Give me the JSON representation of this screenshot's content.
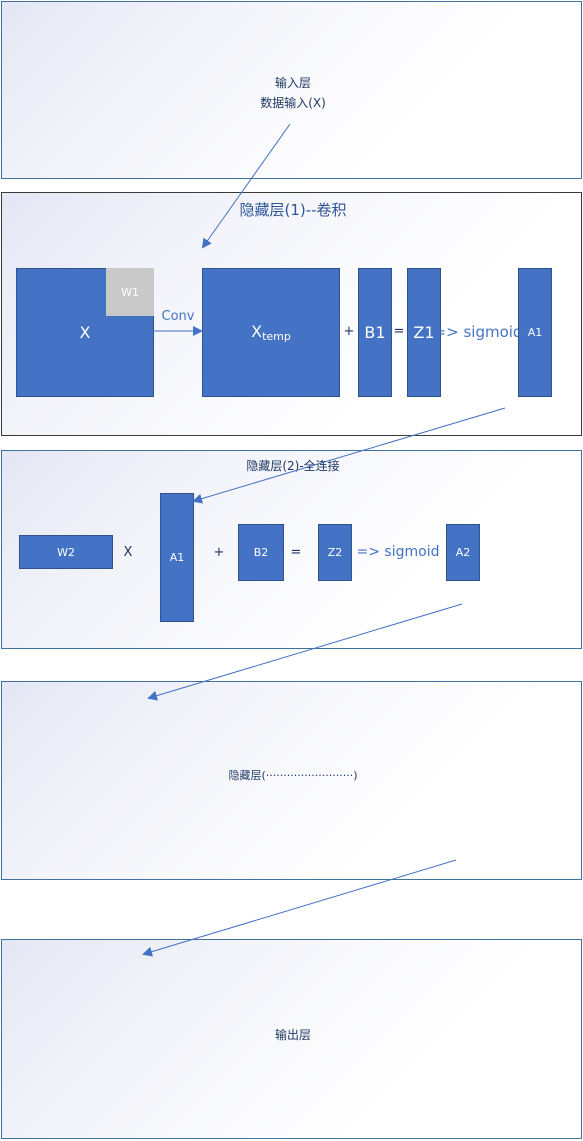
{
  "input_layer": {
    "title": "输入层",
    "subtitle": "数据输入(X)"
  },
  "hidden1": {
    "title": "隐藏层(1)--卷积",
    "x": "X",
    "w1": "W1",
    "conv": "Conv",
    "xtemp_main": "X",
    "xtemp_sub": "temp",
    "plus": "+",
    "b1": "B1",
    "eq": "=",
    "z1": "Z1",
    "sigmoid": "=> sigmoid",
    "a1": "A1"
  },
  "hidden2": {
    "title": "隐藏层(2)-全连接",
    "w2": "W2",
    "times": "X",
    "a1": "A1",
    "plus": "+",
    "b2": "B2",
    "eq": "=",
    "z2": "Z2",
    "sigmoid": "=> sigmoid",
    "a2": "A2"
  },
  "hidden_n": {
    "title": "隐藏层(·························)"
  },
  "output_layer": {
    "title": "输出层"
  },
  "colors": {
    "box_fill": "#4472c4",
    "box_border": "#2f528f",
    "w1_fill": "#c9c9c9",
    "panel_border": "#41719c",
    "text": "#1f3864"
  }
}
